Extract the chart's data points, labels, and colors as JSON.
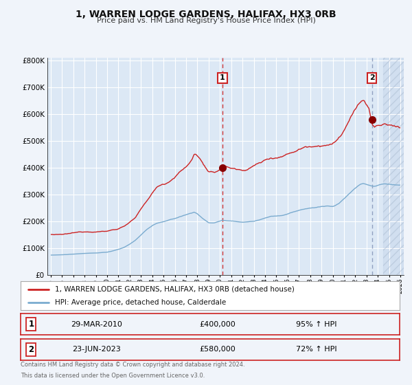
{
  "title": "1, WARREN LODGE GARDENS, HALIFAX, HX3 0RB",
  "subtitle": "Price paid vs. HM Land Registry's House Price Index (HPI)",
  "background_color": "#f0f4fa",
  "plot_bg_color": "#dce8f5",
  "plot_bg_color_right": "#c8d8ec",
  "grid_color": "#ffffff",
  "red_line_color": "#cc2222",
  "blue_line_color": "#7aabcf",
  "marker1_date": 2010.22,
  "marker1_value": 400000,
  "marker2_date": 2023.47,
  "marker2_value": 580000,
  "vline1_date": 2010.22,
  "vline2_date": 2023.47,
  "legend_line1": "1, WARREN LODGE GARDENS, HALIFAX, HX3 0RB (detached house)",
  "legend_line2": "HPI: Average price, detached house, Calderdale",
  "table_row1": [
    "1",
    "29-MAR-2010",
    "£400,000",
    "95% ↑ HPI"
  ],
  "table_row2": [
    "2",
    "23-JUN-2023",
    "£580,000",
    "72% ↑ HPI"
  ],
  "footer1": "Contains HM Land Registry data © Crown copyright and database right 2024.",
  "footer2": "This data is licensed under the Open Government Licence v3.0.",
  "xlim_left": 1994.7,
  "xlim_right": 2026.3,
  "ylim_bottom": 0,
  "ylim_top": 810000,
  "hatch_start": 2024.5
}
